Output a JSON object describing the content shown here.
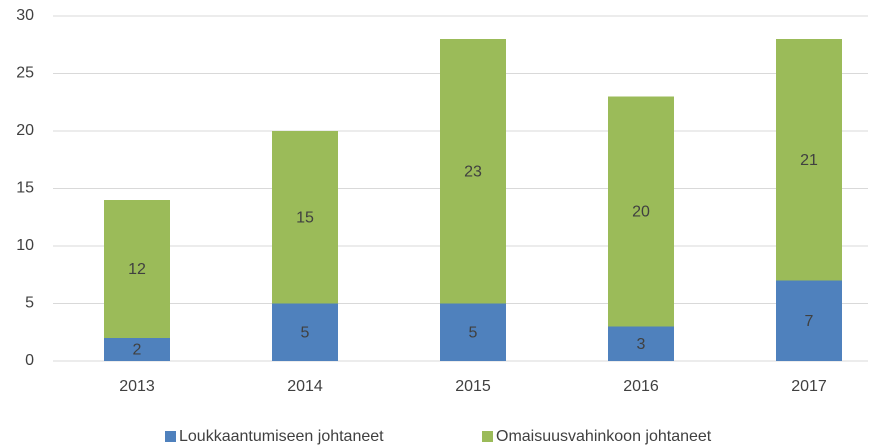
{
  "chart_data": {
    "type": "stacked-bar",
    "categories": [
      "2013",
      "2014",
      "2015",
      "2016",
      "2017"
    ],
    "series": [
      {
        "name": "Loukkaantumiseen johtaneet",
        "color": "#4f81bd",
        "values": [
          2,
          5,
          5,
          3,
          7
        ]
      },
      {
        "name": "Omaisuusvahinkoon johtaneet",
        "color": "#9bbb59",
        "values": [
          12,
          15,
          23,
          20,
          21
        ]
      }
    ],
    "ylim": [
      0,
      30
    ],
    "yticks": [
      0,
      5,
      10,
      15,
      20,
      25,
      30
    ],
    "grid": true,
    "legend": "bottom"
  }
}
